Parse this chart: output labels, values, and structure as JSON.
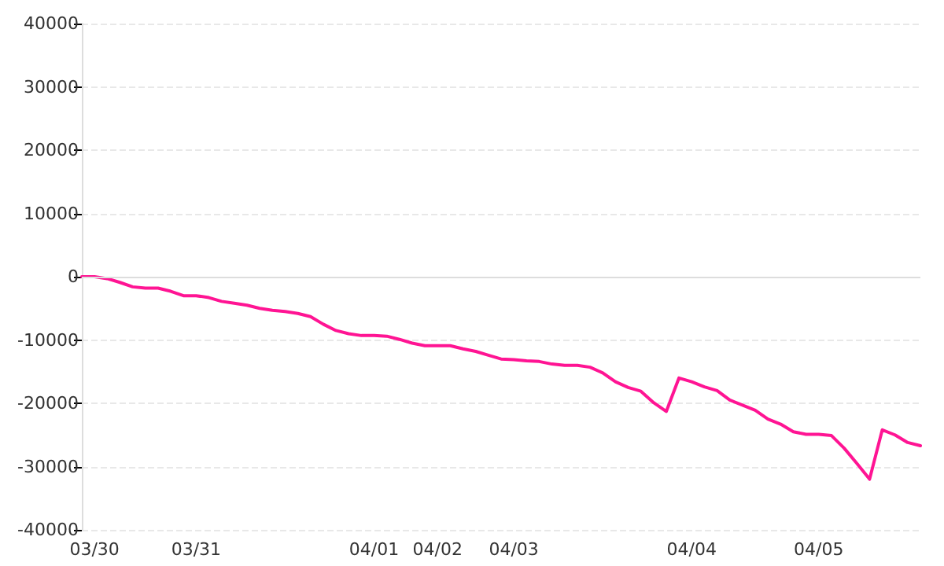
{
  "chart_data": {
    "type": "line",
    "categories": [
      null,
      "03/30",
      null,
      null,
      null,
      null,
      null,
      null,
      null,
      "03/31",
      null,
      null,
      null,
      null,
      null,
      null,
      null,
      null,
      null,
      null,
      null,
      null,
      null,
      "04/01",
      null,
      null,
      null,
      null,
      "04/02",
      null,
      null,
      null,
      null,
      null,
      "04/03",
      null,
      null,
      null,
      null,
      null,
      null,
      null,
      null,
      null,
      null,
      null,
      null,
      null,
      "04/04",
      null,
      null,
      null,
      null,
      null,
      null,
      null,
      null,
      null,
      "04/05",
      null,
      null,
      null,
      null,
      null,
      null,
      null,
      null
    ],
    "series": [
      {
        "color": "#ff1493",
        "values": [
          0,
          0,
          -300,
          -900,
          -1600,
          -1800,
          -1800,
          -2300,
          -3000,
          -3000,
          -3300,
          -3900,
          -4200,
          -4500,
          -5000,
          -5300,
          -5500,
          -5800,
          -6300,
          -7500,
          -8500,
          -9000,
          -9300,
          -9300,
          -9400,
          -9900,
          -10500,
          -10900,
          -10900,
          -10900,
          -11400,
          -11800,
          -12400,
          -13000,
          -13100,
          -13300,
          -13400,
          -13800,
          -14000,
          -14000,
          -14300,
          -15200,
          -16600,
          -17500,
          -18100,
          -19900,
          -21300,
          -16000,
          -16600,
          -17400,
          -18000,
          -19500,
          -20300,
          -21100,
          -22500,
          -23300,
          -24500,
          -24900,
          -24900,
          -25100,
          -27100,
          -29500,
          -32000,
          -24200,
          -25000,
          -26200,
          -26700
        ]
      }
    ],
    "ylim": [
      -40000,
      40000
    ],
    "yticks": [
      -40000,
      -30000,
      -20000,
      -10000,
      0,
      10000,
      20000,
      30000,
      40000
    ],
    "grid": "y",
    "marker": "none",
    "line_style": "solid",
    "ref_lines": [
      {
        "axis": "y",
        "value": 0,
        "color": "#dddddd",
        "line_style": "solid"
      }
    ]
  }
}
